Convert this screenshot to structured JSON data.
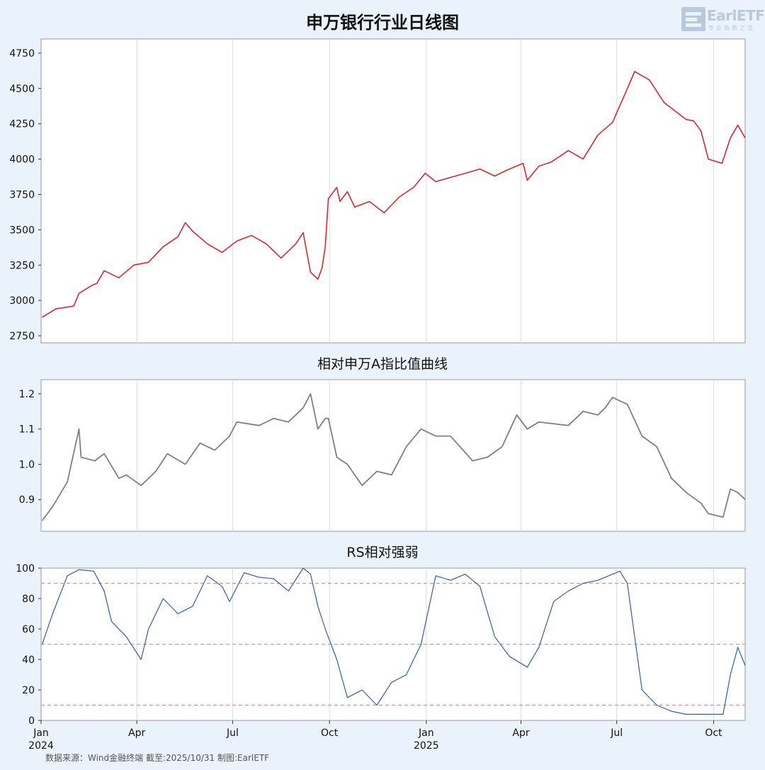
{
  "logo": {
    "text": "EarlETF",
    "subtitle": "专业指数之选"
  },
  "source": "数据来源：Wind金融终端 截至:2025/10/31 制图:EarlETF",
  "colors": {
    "background": "#eaf3fb",
    "price": "#e0262c",
    "ratio": "#808080",
    "rs": "#2f5fb0",
    "ref_red": "#ee8888",
    "ref_gray": "#aaaaaa"
  },
  "x_ticks": [
    {
      "label": "Jan",
      "sub": "2024",
      "date": "2024-01-01"
    },
    {
      "label": "Apr",
      "sub": "",
      "date": "2024-04-01"
    },
    {
      "label": "Jul",
      "sub": "",
      "date": "2024-07-01"
    },
    {
      "label": "Oct",
      "sub": "",
      "date": "2024-10-01"
    },
    {
      "label": "Jan",
      "sub": "2025",
      "date": "2025-01-01"
    },
    {
      "label": "Apr",
      "sub": "",
      "date": "2025-04-01"
    },
    {
      "label": "Jul",
      "sub": "",
      "date": "2025-07-01"
    },
    {
      "label": "Oct",
      "sub": "",
      "date": "2025-10-01"
    }
  ],
  "chart_data": [
    {
      "type": "line",
      "title": "申万银行行业日线图",
      "x_range": [
        "2024-01-01",
        "2025-10-31"
      ],
      "ylim": [
        2700,
        4850
      ],
      "yticks": [
        2750,
        3000,
        3250,
        3500,
        3750,
        4000,
        4250,
        4500,
        4750
      ],
      "grid": "vertical",
      "series": [
        {
          "x": [
            "2024-01-02",
            "2024-01-15",
            "2024-02-01",
            "2024-02-06",
            "2024-02-19",
            "2024-02-23",
            "2024-03-01",
            "2024-03-15",
            "2024-03-29",
            "2024-04-12",
            "2024-04-26",
            "2024-05-10",
            "2024-05-17",
            "2024-05-24",
            "2024-06-07",
            "2024-06-21",
            "2024-07-05",
            "2024-07-19",
            "2024-08-02",
            "2024-08-16",
            "2024-08-30",
            "2024-09-06",
            "2024-09-13",
            "2024-09-20",
            "2024-09-24",
            "2024-09-27",
            "2024-09-30",
            "2024-10-08",
            "2024-10-11",
            "2024-10-18",
            "2024-10-25",
            "2024-11-08",
            "2024-11-22",
            "2024-12-06",
            "2024-12-20",
            "2024-12-31",
            "2025-01-10",
            "2025-01-24",
            "2025-02-07",
            "2025-02-21",
            "2025-03-07",
            "2025-03-21",
            "2025-04-03",
            "2025-04-07",
            "2025-04-18",
            "2025-04-30",
            "2025-05-16",
            "2025-05-30",
            "2025-06-13",
            "2025-06-27",
            "2025-07-04",
            "2025-07-10",
            "2025-07-18",
            "2025-08-01",
            "2025-08-15",
            "2025-08-29",
            "2025-09-05",
            "2025-09-12",
            "2025-09-19",
            "2025-09-26",
            "2025-10-09",
            "2025-10-17",
            "2025-10-24",
            "2025-10-31"
          ],
          "y": [
            2880,
            2940,
            2960,
            3050,
            3110,
            3120,
            3210,
            3160,
            3250,
            3270,
            3380,
            3450,
            3550,
            3490,
            3400,
            3340,
            3420,
            3460,
            3400,
            3300,
            3400,
            3480,
            3200,
            3150,
            3230,
            3380,
            3720,
            3800,
            3700,
            3770,
            3660,
            3700,
            3620,
            3730,
            3800,
            3900,
            3840,
            3870,
            3900,
            3930,
            3880,
            3930,
            3970,
            3850,
            3950,
            3980,
            4060,
            4000,
            4170,
            4260,
            4380,
            4480,
            4620,
            4560,
            4400,
            4320,
            4280,
            4270,
            4200,
            4000,
            3970,
            4150,
            4240,
            4150
          ],
          "name": ""
        }
      ]
    },
    {
      "type": "line",
      "title": "相对申万A指比值曲线",
      "x_range": [
        "2024-01-01",
        "2025-10-31"
      ],
      "ylim": [
        0.81,
        1.24
      ],
      "yticks": [
        0.9,
        1.0,
        1.1,
        1.2
      ],
      "grid": "vertical",
      "series": [
        {
          "x": [
            "2024-01-02",
            "2024-01-12",
            "2024-01-26",
            "2024-02-06",
            "2024-02-08",
            "2024-02-21",
            "2024-03-01",
            "2024-03-15",
            "2024-03-22",
            "2024-04-05",
            "2024-04-19",
            "2024-04-30",
            "2024-05-17",
            "2024-05-31",
            "2024-06-14",
            "2024-06-28",
            "2024-07-05",
            "2024-07-26",
            "2024-08-09",
            "2024-08-23",
            "2024-09-06",
            "2024-09-13",
            "2024-09-20",
            "2024-09-27",
            "2024-09-30",
            "2024-10-08",
            "2024-10-18",
            "2024-11-01",
            "2024-11-15",
            "2024-11-29",
            "2024-12-13",
            "2024-12-27",
            "2025-01-10",
            "2025-01-24",
            "2025-02-14",
            "2025-02-28",
            "2025-03-14",
            "2025-03-28",
            "2025-04-07",
            "2025-04-18",
            "2025-05-16",
            "2025-05-30",
            "2025-06-13",
            "2025-06-20",
            "2025-06-27",
            "2025-07-04",
            "2025-07-11",
            "2025-07-25",
            "2025-08-08",
            "2025-08-22",
            "2025-09-05",
            "2025-09-19",
            "2025-09-26",
            "2025-10-10",
            "2025-10-17",
            "2025-10-24",
            "2025-10-31"
          ],
          "y": [
            0.84,
            0.88,
            0.95,
            1.1,
            1.02,
            1.01,
            1.03,
            0.96,
            0.97,
            0.94,
            0.98,
            1.03,
            1.0,
            1.06,
            1.04,
            1.08,
            1.12,
            1.11,
            1.13,
            1.12,
            1.16,
            1.2,
            1.1,
            1.13,
            1.13,
            1.02,
            1.0,
            0.94,
            0.98,
            0.97,
            1.05,
            1.1,
            1.08,
            1.08,
            1.01,
            1.02,
            1.05,
            1.14,
            1.1,
            1.12,
            1.11,
            1.15,
            1.14,
            1.16,
            1.19,
            1.18,
            1.17,
            1.08,
            1.05,
            0.96,
            0.92,
            0.89,
            0.86,
            0.85,
            0.93,
            0.92,
            0.9
          ],
          "name": ""
        }
      ]
    },
    {
      "type": "line",
      "title": "RS相对强弱",
      "x_range": [
        "2024-01-01",
        "2025-10-31"
      ],
      "ylim": [
        0,
        100
      ],
      "yticks": [
        0,
        20,
        40,
        60,
        80,
        100
      ],
      "grid": "vertical",
      "reference_lines": [
        90,
        50,
        10
      ],
      "series": [
        {
          "x": [
            "2024-01-02",
            "2024-01-12",
            "2024-01-26",
            "2024-02-06",
            "2024-02-20",
            "2024-03-01",
            "2024-03-08",
            "2024-03-22",
            "2024-04-05",
            "2024-04-12",
            "2024-04-26",
            "2024-05-10",
            "2024-05-24",
            "2024-06-07",
            "2024-06-21",
            "2024-06-28",
            "2024-07-12",
            "2024-07-26",
            "2024-08-09",
            "2024-08-23",
            "2024-09-06",
            "2024-09-13",
            "2024-09-20",
            "2024-09-27",
            "2024-10-08",
            "2024-10-18",
            "2024-11-01",
            "2024-11-15",
            "2024-11-29",
            "2024-12-13",
            "2024-12-27",
            "2025-01-10",
            "2025-01-24",
            "2025-02-07",
            "2025-02-21",
            "2025-03-07",
            "2025-03-21",
            "2025-04-07",
            "2025-04-18",
            "2025-05-02",
            "2025-05-16",
            "2025-05-30",
            "2025-06-13",
            "2025-06-27",
            "2025-07-04",
            "2025-07-11",
            "2025-07-25",
            "2025-08-08",
            "2025-08-22",
            "2025-09-05",
            "2025-09-19",
            "2025-09-26",
            "2025-10-10",
            "2025-10-17",
            "2025-10-24",
            "2025-10-31"
          ],
          "y": [
            50,
            70,
            95,
            99,
            98,
            85,
            65,
            55,
            40,
            60,
            80,
            70,
            75,
            95,
            88,
            78,
            97,
            94,
            93,
            85,
            100,
            96,
            75,
            60,
            40,
            15,
            20,
            10,
            25,
            30,
            50,
            95,
            92,
            96,
            88,
            55,
            42,
            35,
            48,
            78,
            85,
            90,
            92,
            96,
            98,
            90,
            20,
            10,
            6,
            4,
            4,
            4,
            4,
            30,
            48,
            36
          ],
          "name": ""
        }
      ]
    }
  ]
}
